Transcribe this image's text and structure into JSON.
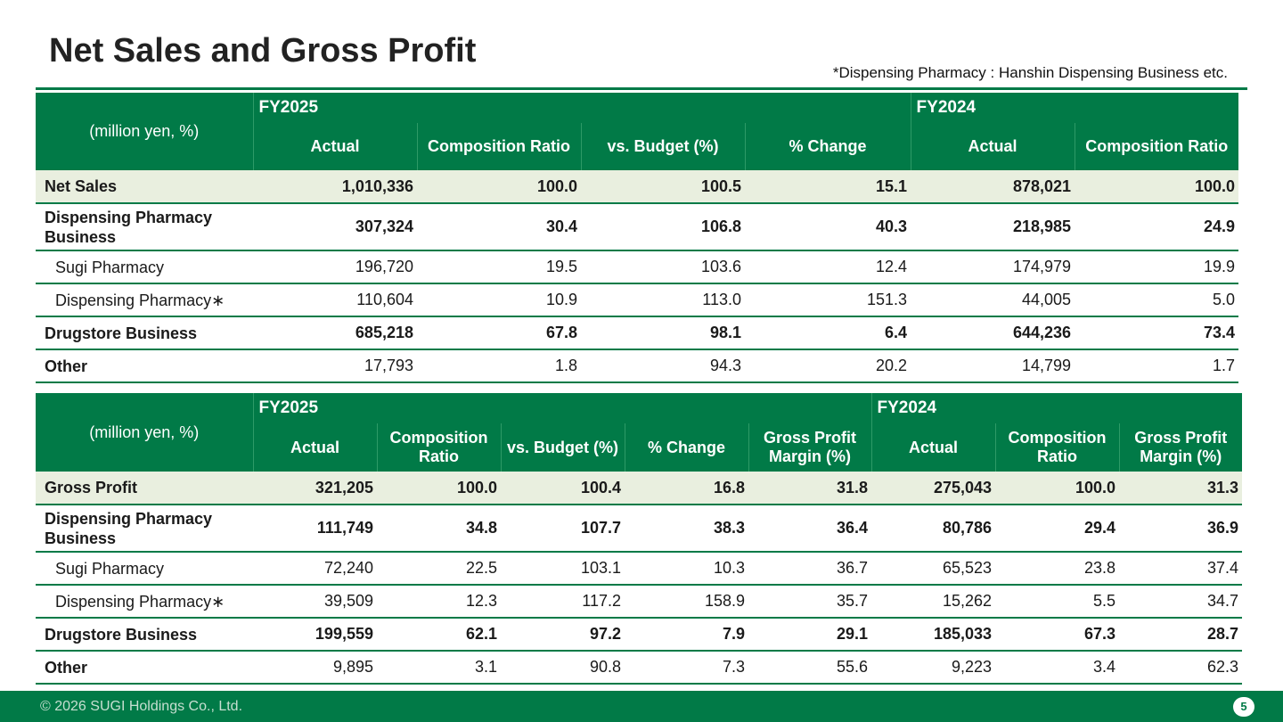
{
  "page": {
    "title": "Net Sales and Gross Profit",
    "note": "*Dispensing Pharmacy : Hanshin Dispensing Business etc."
  },
  "net_sales_table": {
    "unit_label": "(million yen, %)",
    "fy_current": "FY2025",
    "fy_prior": "FY2024",
    "columns": [
      "Actual",
      "Composition Ratio",
      "vs. Budget (%)",
      "% Change",
      "Actual",
      "Composition Ratio"
    ],
    "rows": [
      {
        "label": "Net Sales",
        "values": [
          "1,010,336",
          "100.0",
          "100.5",
          "15.1",
          "878,021",
          "100.0"
        ]
      },
      {
        "label": "Dispensing Pharmacy Business",
        "values": [
          "307,324",
          "30.4",
          "106.8",
          "40.3",
          "218,985",
          "24.9"
        ]
      },
      {
        "label": "Sugi Pharmacy",
        "values": [
          "196,720",
          "19.5",
          "103.6",
          "12.4",
          "174,979",
          "19.9"
        ]
      },
      {
        "label": "Dispensing Pharmacy∗",
        "values": [
          "110,604",
          "10.9",
          "113.0",
          "151.3",
          "44,005",
          "5.0"
        ]
      },
      {
        "label": "Drugstore Business",
        "values": [
          "685,218",
          "67.8",
          "98.1",
          "6.4",
          "644,236",
          "73.4"
        ]
      },
      {
        "label": "Other",
        "values": [
          "17,793",
          "1.8",
          "94.3",
          "20.2",
          "14,799",
          "1.7"
        ]
      }
    ]
  },
  "gross_profit_table": {
    "unit_label": "(million yen, %)",
    "fy_current": "FY2025",
    "fy_prior": "FY2024",
    "columns": [
      "Actual",
      "Composition Ratio",
      "vs. Budget (%)",
      "% Change",
      "Gross Profit Margin (%)",
      "Actual",
      "Composition Ratio",
      "Gross Profit Margin (%)"
    ],
    "rows": [
      {
        "label": "Gross Profit",
        "values": [
          "321,205",
          "100.0",
          "100.4",
          "16.8",
          "31.8",
          "275,043",
          "100.0",
          "31.3"
        ]
      },
      {
        "label": "Dispensing Pharmacy Business",
        "values": [
          "111,749",
          "34.8",
          "107.7",
          "38.3",
          "36.4",
          "80,786",
          "29.4",
          "36.9"
        ]
      },
      {
        "label": "Sugi Pharmacy",
        "values": [
          "72,240",
          "22.5",
          "103.1",
          "10.3",
          "36.7",
          "65,523",
          "23.8",
          "37.4"
        ]
      },
      {
        "label": "Dispensing Pharmacy∗",
        "values": [
          "39,509",
          "12.3",
          "117.2",
          "158.9",
          "35.7",
          "15,262",
          "5.5",
          "34.7"
        ]
      },
      {
        "label": "Drugstore Business",
        "values": [
          "199,559",
          "62.1",
          "97.2",
          "7.9",
          "29.1",
          "185,033",
          "67.3",
          "28.7"
        ]
      },
      {
        "label": "Other",
        "values": [
          "9,895",
          "3.1",
          "90.8",
          "7.3",
          "55.6",
          "9,223",
          "3.4",
          "62.3"
        ]
      }
    ]
  },
  "footer": {
    "copyright": "© 2026 SUGI Holdings Co., Ltd.",
    "page_number": "5"
  },
  "colors": {
    "brand_green": "#017a47",
    "total_row_bg": "#e9efdf"
  }
}
